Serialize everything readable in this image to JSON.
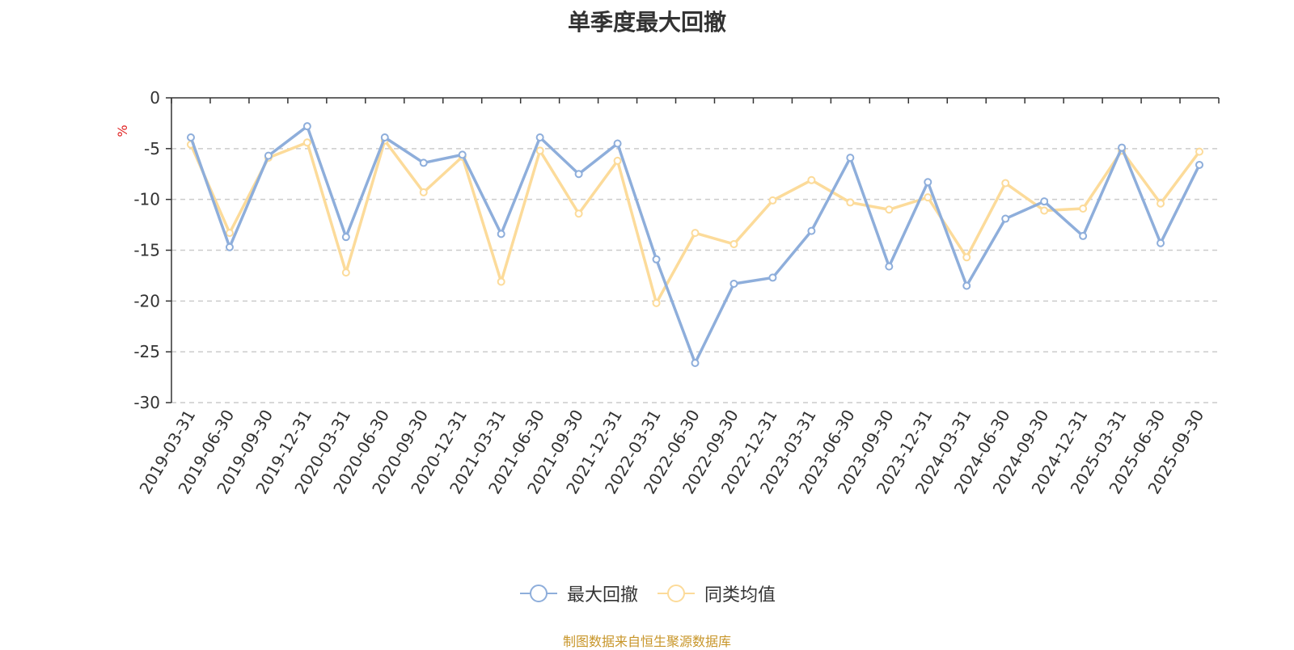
{
  "chart_data": {
    "type": "line",
    "title": "单季度最大回撤",
    "ylabel": "%",
    "ylim": [
      -30,
      0
    ],
    "yticks": [
      0,
      -5,
      -10,
      -15,
      -20,
      -25,
      -30
    ],
    "grid": true,
    "legend_position": "bottom",
    "x": [
      "2019-03-31",
      "2019-06-30",
      "2019-09-30",
      "2019-12-31",
      "2020-03-31",
      "2020-06-30",
      "2020-09-30",
      "2020-12-31",
      "2021-03-31",
      "2021-06-30",
      "2021-09-30",
      "2021-12-31",
      "2022-03-31",
      "2022-06-30",
      "2022-09-30",
      "2022-12-31",
      "2023-03-31",
      "2023-06-30",
      "2023-09-30",
      "2023-12-31",
      "2024-03-31",
      "2024-06-30",
      "2024-09-30",
      "2024-12-31",
      "2025-03-31",
      "2025-06-30",
      "2025-09-30"
    ],
    "series": [
      {
        "name": "最大回撤",
        "color": "#8eaedb",
        "values": [
          -3.9,
          -14.7,
          -5.7,
          -2.8,
          -13.7,
          -3.9,
          -6.4,
          -5.6,
          -13.4,
          -3.9,
          -7.5,
          -4.5,
          -15.9,
          -26.1,
          -18.3,
          -17.7,
          -13.1,
          -5.9,
          -16.6,
          -8.3,
          -18.5,
          -11.9,
          -10.2,
          -13.6,
          -4.9,
          -14.3,
          -6.6
        ]
      },
      {
        "name": "同类均值",
        "color": "#fcdb9a",
        "values": [
          -4.6,
          -13.3,
          -5.9,
          -4.4,
          -17.2,
          -4.2,
          -9.3,
          -5.8,
          -18.1,
          -5.2,
          -11.4,
          -6.2,
          -20.2,
          -13.3,
          -14.4,
          -10.1,
          -8.1,
          -10.3,
          -11.0,
          -9.8,
          -15.7,
          -8.4,
          -11.1,
          -10.9,
          -5.2,
          -10.4,
          -5.3
        ]
      }
    ]
  },
  "source_text": "制图数据来自恒生聚源数据库"
}
